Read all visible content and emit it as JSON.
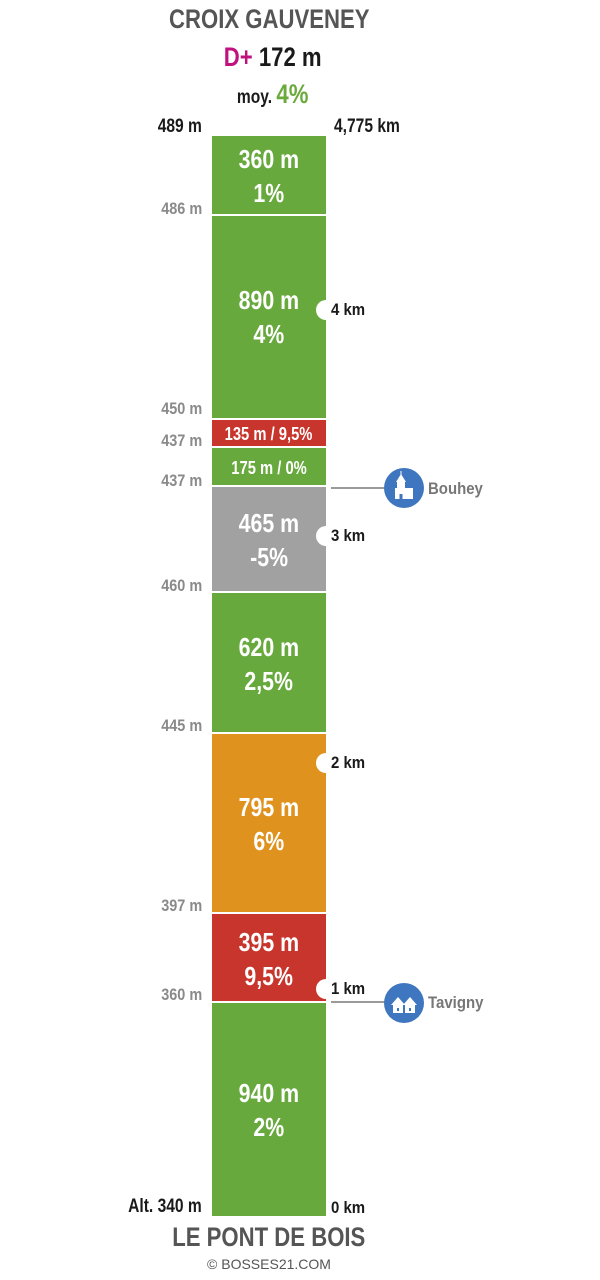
{
  "title": "CROIX GAUVENEY",
  "gain_prefix": "D+",
  "gain_value": "172 m",
  "avg_label": "moy.",
  "avg_value": "4%",
  "top_altitude": "489 m",
  "total_distance": "4,775 km",
  "base_altitude": "Alt. 340 m",
  "base_distance": "0 km",
  "bottom_title": "LE PONT DE BOIS",
  "credit": "© BOSSES21.COM",
  "segment_colors": {
    "green": "#68a93e",
    "red": "#c8352c",
    "gray": "#a1a1a1",
    "orange": "#e0921e"
  },
  "segments": [
    {
      "length": "360 m",
      "grade": "1%",
      "color": "green"
    },
    {
      "length": "890 m",
      "grade": "4%",
      "color": "green"
    },
    {
      "label": "135 m / 9,5%",
      "color": "red"
    },
    {
      "label": "175 m / 0%",
      "color": "green"
    },
    {
      "length": "465 m",
      "grade": "-5%",
      "color": "gray"
    },
    {
      "length": "620 m",
      "grade": "2,5%",
      "color": "green"
    },
    {
      "length": "795 m",
      "grade": "6%",
      "color": "orange"
    },
    {
      "length": "395 m",
      "grade": "9,5%",
      "color": "red"
    },
    {
      "length": "940 m",
      "grade": "2%",
      "color": "green"
    }
  ],
  "altitudes": [
    "486 m",
    "450 m",
    "437 m",
    "437 m",
    "460 m",
    "445 m",
    "397 m",
    "360 m"
  ],
  "km_markers": [
    "4 km",
    "3 km",
    "2 km",
    "1 km"
  ],
  "towns": [
    {
      "name": "Bouhey",
      "icon": "church-icon"
    },
    {
      "name": "Tavigny",
      "icon": "houses-icon"
    }
  ]
}
